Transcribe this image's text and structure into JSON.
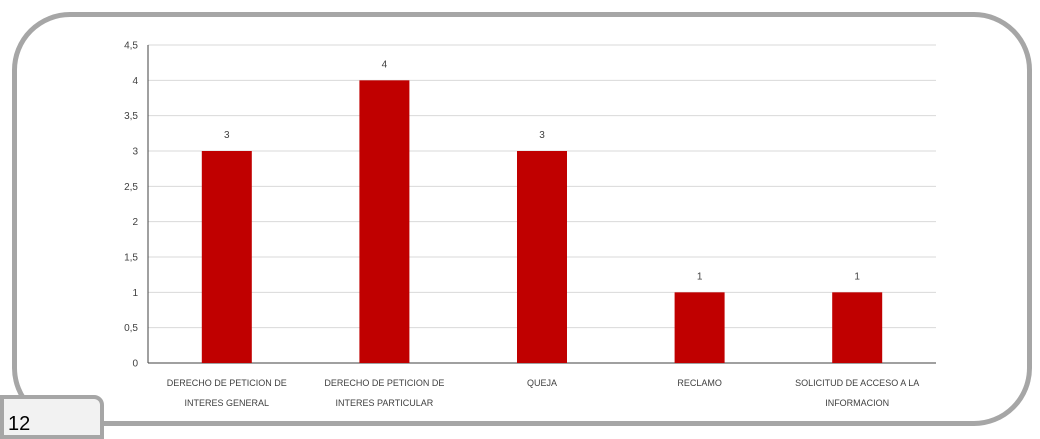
{
  "page": {
    "number": "12"
  },
  "colors": {
    "bar": "#c00000",
    "grid": "#d9d9d9",
    "axis": "#404040",
    "frame": "#a6a6a6"
  },
  "chart_data": {
    "type": "bar",
    "title": "",
    "xlabel": "",
    "ylabel": "",
    "categories": [
      [
        "DERECHO DE PETICION DE",
        "INTERES GENERAL"
      ],
      [
        "DERECHO DE PETICION DE",
        "INTERES PARTICULAR"
      ],
      [
        "QUEJA"
      ],
      [
        "RECLAMO"
      ],
      [
        "SOLICITUD DE ACCESO A LA",
        "INFORMACION"
      ]
    ],
    "values": [
      3,
      4,
      3,
      1,
      1
    ],
    "data_labels": [
      "3",
      "4",
      "3",
      "1",
      "1"
    ],
    "ylim": [
      0,
      4.5
    ],
    "yticks": [
      0,
      0.5,
      1,
      1.5,
      2,
      2.5,
      3,
      3.5,
      4,
      4.5
    ],
    "ytick_labels": [
      "0",
      "0,5",
      "1",
      "1,5",
      "2",
      "2,5",
      "3",
      "3,5",
      "4",
      "4,5"
    ],
    "grid": true,
    "legend": "none"
  }
}
